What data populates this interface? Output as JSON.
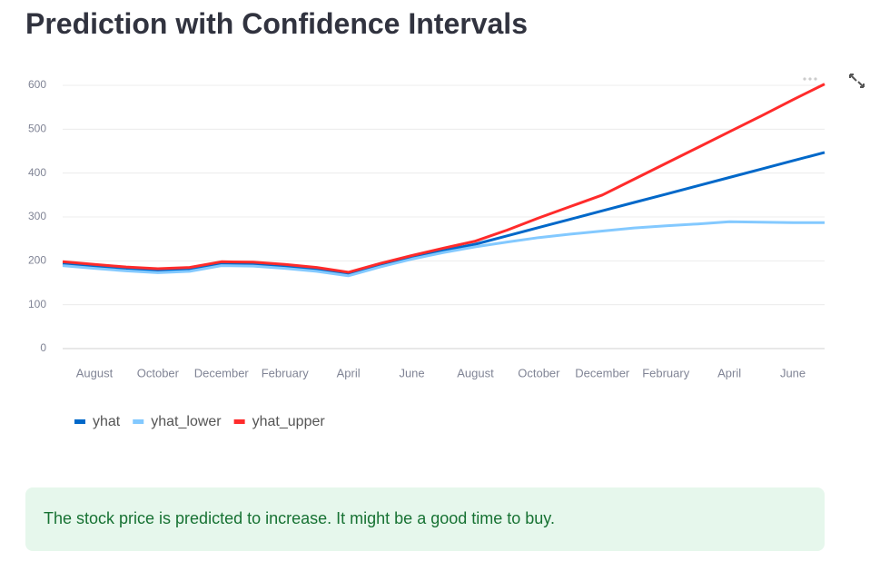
{
  "header": {
    "title": "Prediction with Confidence Intervals"
  },
  "chart_data": {
    "type": "line",
    "categories": [
      null,
      "August",
      null,
      "October",
      null,
      "December",
      null,
      "February",
      null,
      "April",
      null,
      "June",
      null,
      "August",
      null,
      "October",
      null,
      "December",
      null,
      "February",
      null,
      "April",
      null,
      "June",
      null
    ],
    "series": [
      {
        "name": "yhat",
        "color": "#0068c9",
        "values": [
          193,
          187,
          181,
          177,
          180,
          193,
          192,
          187,
          180,
          170,
          190,
          208,
          224,
          238,
          257,
          276,
          295,
          314,
          333,
          352,
          371,
          390,
          409,
          428,
          447
        ]
      },
      {
        "name": "yhat_lower",
        "color": "#83c9ff",
        "values": [
          189,
          183,
          177,
          173,
          176,
          189,
          188,
          183,
          176,
          166,
          186,
          204,
          219,
          232,
          243,
          253,
          261,
          268,
          275,
          280,
          284,
          289,
          288,
          287,
          287
        ]
      },
      {
        "name": "yhat_upper",
        "color": "#ff2b2b",
        "values": [
          198,
          192,
          186,
          182,
          185,
          198,
          197,
          192,
          185,
          174,
          194,
          212,
          229,
          245,
          270,
          298,
          324,
          350,
          386,
          422,
          458,
          494,
          530,
          567,
          603
        ]
      }
    ],
    "ylim": [
      0,
      600
    ],
    "yticks": [
      0,
      100,
      200,
      300,
      400,
      500,
      600
    ],
    "grid": true,
    "legend": "bottom-left"
  },
  "alert": {
    "text": "The stock price is predicted to increase. It might be a good time to buy."
  }
}
